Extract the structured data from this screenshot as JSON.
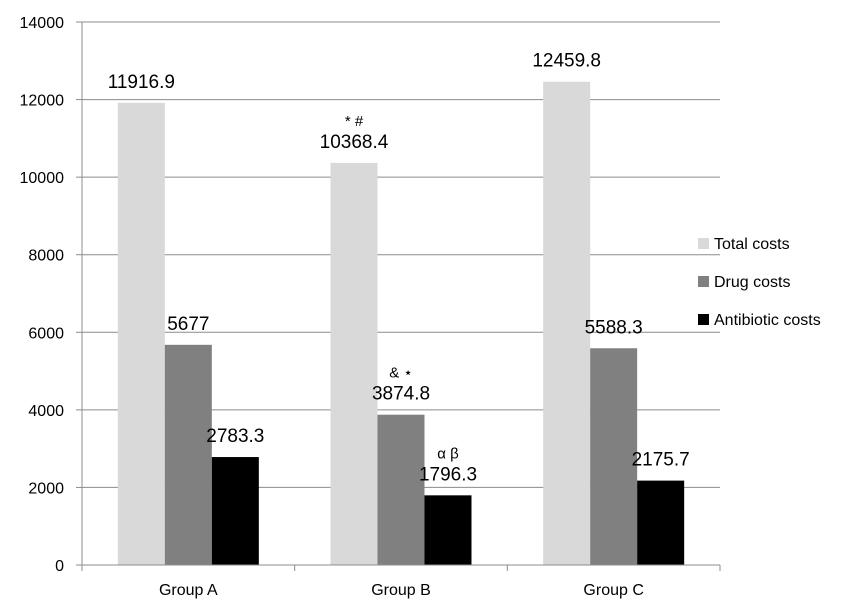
{
  "chart_data": {
    "type": "bar",
    "categories": [
      "Group A",
      "Group B",
      "Group C"
    ],
    "series": [
      {
        "name": "Total costs",
        "color": "#d9d9d9",
        "values": [
          11916.9,
          10368.4,
          12459.8
        ],
        "labels": [
          "11916.9",
          "10368.4",
          "12459.8"
        ]
      },
      {
        "name": "Drug costs",
        "color": "#808080",
        "values": [
          5677,
          3874.8,
          5588.3
        ],
        "labels": [
          "5677",
          "3874.8",
          "5588.3"
        ]
      },
      {
        "name": "Antibiotic costs",
        "color": "#000000",
        "values": [
          2783.3,
          1796.3,
          2175.7
        ],
        "labels": [
          "2783.3",
          "1796.3",
          "2175.7"
        ]
      }
    ],
    "annotations": [
      {
        "series": 0,
        "category": 1,
        "text": "* #"
      },
      {
        "series": 1,
        "category": 1,
        "text": "& ⋆"
      },
      {
        "series": 2,
        "category": 1,
        "text": "α β"
      }
    ],
    "yticks": [
      "0",
      "2000",
      "4000",
      "6000",
      "8000",
      "10000",
      "12000",
      "14000"
    ],
    "ylim": [
      0,
      14000
    ],
    "grid": true,
    "legend_position": "right"
  }
}
